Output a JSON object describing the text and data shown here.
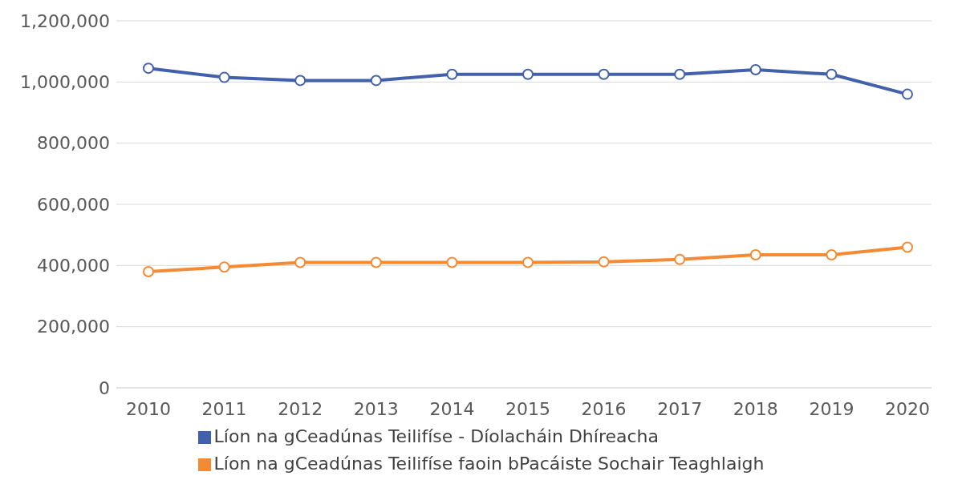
{
  "chart_data": {
    "type": "line",
    "categories": [
      "2010",
      "2011",
      "2012",
      "2013",
      "2014",
      "2015",
      "2016",
      "2017",
      "2018",
      "2019",
      "2020"
    ],
    "series": [
      {
        "name": "Líon na gCeadúnas Teilifíse - Díolacháin Dhíreacha",
        "color": "#4360ad",
        "values": [
          1045000,
          1015000,
          1005000,
          1005000,
          1025000,
          1025000,
          1025000,
          1025000,
          1040000,
          1025000,
          960000
        ]
      },
      {
        "name": "Líon na gCeadúnas Teilifíse faoin bPacáiste Sochair Teaghlaigh",
        "color": "#f58a35",
        "values": [
          380000,
          395000,
          410000,
          410000,
          410000,
          410000,
          412000,
          420000,
          435000,
          435000,
          460000
        ]
      }
    ],
    "ylim": [
      0,
      1200000
    ],
    "yticks": [
      {
        "value": 0,
        "label": "0"
      },
      {
        "value": 200000,
        "label": "200,000"
      },
      {
        "value": 400000,
        "label": "400,000"
      },
      {
        "value": 600000,
        "label": "600,000"
      },
      {
        "value": 800000,
        "label": "800,000"
      },
      {
        "value": 1000000,
        "label": "1,000,000"
      },
      {
        "value": 1200000,
        "label": "1,200,000"
      }
    ],
    "grid": "y",
    "legend": "bottom",
    "marker": "circle",
    "line_style": "solid"
  }
}
